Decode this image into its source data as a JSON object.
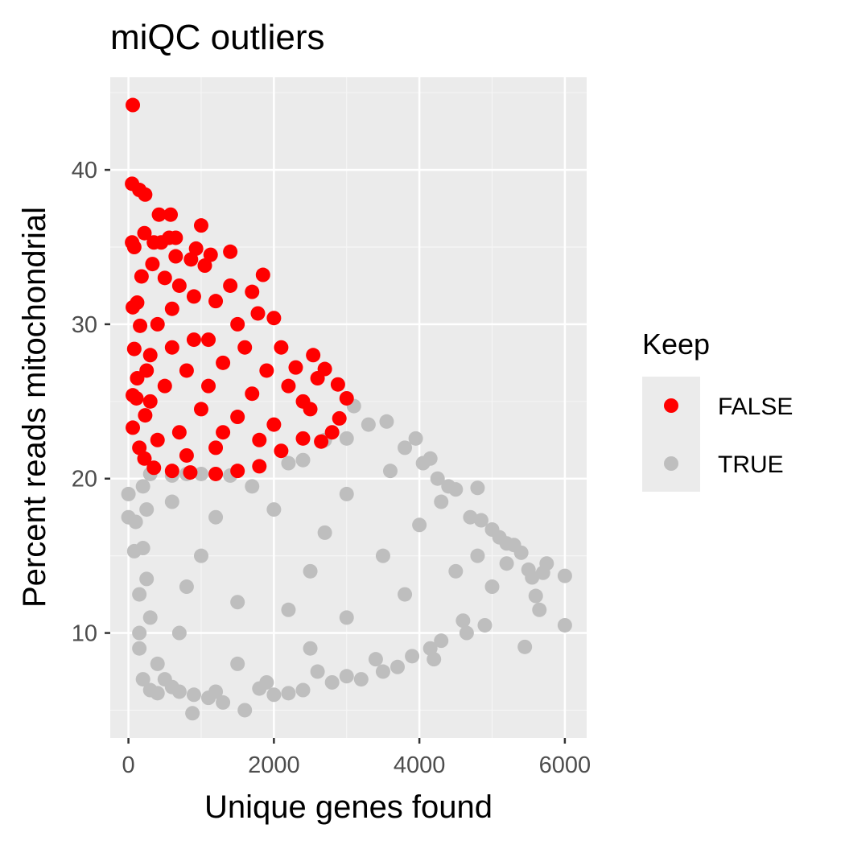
{
  "chart_data": {
    "type": "scatter",
    "title": "miQC outliers",
    "xlabel": "Unique genes found",
    "ylabel": "Percent reads mitochondrial",
    "xlim": [
      -250,
      6300
    ],
    "ylim": [
      3.2,
      46
    ],
    "x_ticks": [
      0,
      2000,
      4000,
      6000
    ],
    "x_tick_labels": [
      "0",
      "2000",
      "4000",
      "6000"
    ],
    "y_ticks": [
      10,
      20,
      30,
      40
    ],
    "y_tick_labels": [
      "10",
      "20",
      "30",
      "40"
    ],
    "grid": true,
    "legend": {
      "title": "Keep",
      "position": "right",
      "entries": [
        {
          "label": "FALSE",
          "color": "#ff0000"
        },
        {
          "label": "TRUE",
          "color": "#bebebe"
        }
      ]
    },
    "series": [
      {
        "name": "TRUE",
        "color": "#bebebe",
        "points": [
          [
            0,
            19.0
          ],
          [
            0,
            17.5
          ],
          [
            80,
            15.3
          ],
          [
            100,
            17.2
          ],
          [
            150,
            12.5
          ],
          [
            150,
            10.0
          ],
          [
            150,
            9.0
          ],
          [
            200,
            7.0
          ],
          [
            200,
            19.5
          ],
          [
            300,
            6.3
          ],
          [
            300,
            20.3
          ],
          [
            400,
            6.1
          ],
          [
            500,
            7.0
          ],
          [
            600,
            20.2
          ],
          [
            700,
            6.2
          ],
          [
            800,
            20.3
          ],
          [
            880,
            4.8
          ],
          [
            900,
            6.0
          ],
          [
            1000,
            20.3
          ],
          [
            1100,
            5.8
          ],
          [
            1300,
            5.5
          ],
          [
            1400,
            20.2
          ],
          [
            1600,
            5.0
          ],
          [
            1800,
            6.4
          ],
          [
            2000,
            6.0
          ],
          [
            2200,
            21.0
          ],
          [
            2200,
            6.1
          ],
          [
            2400,
            21.2
          ],
          [
            2400,
            6.3
          ],
          [
            2700,
            22.5
          ],
          [
            2800,
            6.8
          ],
          [
            3000,
            22.6
          ],
          [
            3000,
            7.2
          ],
          [
            3100,
            24.7
          ],
          [
            3200,
            7.0
          ],
          [
            3300,
            23.5
          ],
          [
            3500,
            7.5
          ],
          [
            3550,
            23.7
          ],
          [
            3700,
            7.8
          ],
          [
            3800,
            22.0
          ],
          [
            3900,
            8.5
          ],
          [
            3950,
            22.6
          ],
          [
            4050,
            21.0
          ],
          [
            4150,
            21.3
          ],
          [
            4200,
            8.3
          ],
          [
            4250,
            20.0
          ],
          [
            4300,
            9.5
          ],
          [
            4400,
            19.5
          ],
          [
            4500,
            19.3
          ],
          [
            4600,
            10.8
          ],
          [
            4700,
            17.5
          ],
          [
            4800,
            19.4
          ],
          [
            4850,
            17.3
          ],
          [
            4900,
            10.5
          ],
          [
            5000,
            16.7
          ],
          [
            5100,
            16.2
          ],
          [
            5200,
            15.8
          ],
          [
            5300,
            15.7
          ],
          [
            5400,
            15.2
          ],
          [
            5450,
            9.1
          ],
          [
            5500,
            14.1
          ],
          [
            5550,
            13.6
          ],
          [
            5600,
            12.4
          ],
          [
            5700,
            13.9
          ],
          [
            5750,
            14.5
          ],
          [
            5650,
            11.5
          ],
          [
            6000,
            13.7
          ],
          [
            6000,
            10.5
          ],
          [
            4650,
            10.0
          ],
          [
            4150,
            9.0
          ],
          [
            3400,
            8.3
          ],
          [
            2600,
            7.5
          ],
          [
            1900,
            6.8
          ],
          [
            1200,
            6.2
          ],
          [
            600,
            6.5
          ],
          [
            400,
            8.0
          ],
          [
            300,
            11.0
          ],
          [
            250,
            13.5
          ],
          [
            200,
            15.5
          ],
          [
            250,
            18.0
          ],
          [
            1500,
            12.0
          ],
          [
            2500,
            14.0
          ],
          [
            3500,
            15.0
          ],
          [
            4500,
            14.0
          ],
          [
            2000,
            18.0
          ],
          [
            1000,
            15.0
          ],
          [
            3000,
            11.0
          ],
          [
            2500,
            9.0
          ],
          [
            1500,
            8.0
          ],
          [
            700,
            10.0
          ],
          [
            4000,
            17.0
          ],
          [
            3000,
            19.0
          ],
          [
            5000,
            13.0
          ],
          [
            1200,
            17.5
          ],
          [
            800,
            13.0
          ],
          [
            2200,
            11.5
          ],
          [
            3800,
            12.5
          ],
          [
            4800,
            15.0
          ],
          [
            1700,
            19.5
          ],
          [
            2700,
            16.5
          ],
          [
            4300,
            18.5
          ],
          [
            5200,
            14.5
          ],
          [
            3600,
            20.5
          ],
          [
            600,
            18.5
          ]
        ]
      },
      {
        "name": "FALSE",
        "color": "#ff0000",
        "points": [
          [
            60,
            44.2
          ],
          [
            50,
            39.1
          ],
          [
            150,
            38.7
          ],
          [
            230,
            38.4
          ],
          [
            420,
            37.1
          ],
          [
            580,
            37.1
          ],
          [
            1000,
            36.4
          ],
          [
            50,
            35.3
          ],
          [
            80,
            35.0
          ],
          [
            220,
            35.9
          ],
          [
            350,
            35.3
          ],
          [
            450,
            35.3
          ],
          [
            560,
            35.6
          ],
          [
            650,
            35.6
          ],
          [
            930,
            34.9
          ],
          [
            1130,
            34.5
          ],
          [
            1400,
            34.7
          ],
          [
            650,
            34.4
          ],
          [
            860,
            34.2
          ],
          [
            180,
            33.1
          ],
          [
            330,
            33.9
          ],
          [
            1050,
            33.8
          ],
          [
            1850,
            33.2
          ],
          [
            1780,
            30.7
          ],
          [
            60,
            31.1
          ],
          [
            120,
            31.4
          ],
          [
            160,
            29.9
          ],
          [
            80,
            28.4
          ],
          [
            120,
            26.5
          ],
          [
            60,
            25.4
          ],
          [
            110,
            25.2
          ],
          [
            60,
            23.3
          ],
          [
            230,
            24.1
          ],
          [
            150,
            22.0
          ],
          [
            220,
            21.3
          ],
          [
            350,
            20.7
          ],
          [
            600,
            20.5
          ],
          [
            850,
            20.4
          ],
          [
            1200,
            20.3
          ],
          [
            1500,
            20.5
          ],
          [
            1800,
            20.8
          ],
          [
            2100,
            21.8
          ],
          [
            2400,
            22.6
          ],
          [
            2650,
            22.4
          ],
          [
            2800,
            23.0
          ],
          [
            2900,
            23.9
          ],
          [
            3000,
            25.2
          ],
          [
            2880,
            26.1
          ],
          [
            2700,
            27.1
          ],
          [
            2540,
            28.0
          ],
          [
            2300,
            27.2
          ],
          [
            2000,
            30.4
          ],
          [
            1700,
            32.1
          ],
          [
            1400,
            32.5
          ],
          [
            1200,
            31.5
          ],
          [
            900,
            31.8
          ],
          [
            600,
            31.0
          ],
          [
            400,
            30.0
          ],
          [
            300,
            28.0
          ],
          [
            500,
            26.0
          ],
          [
            800,
            27.0
          ],
          [
            1100,
            29.0
          ],
          [
            1300,
            27.5
          ],
          [
            1600,
            28.5
          ],
          [
            1900,
            27.0
          ],
          [
            2200,
            26.0
          ],
          [
            2500,
            24.5
          ],
          [
            2000,
            23.5
          ],
          [
            1500,
            24.0
          ],
          [
            1000,
            24.5
          ],
          [
            700,
            23.0
          ],
          [
            400,
            22.5
          ],
          [
            1200,
            22.0
          ],
          [
            1800,
            22.5
          ],
          [
            2400,
            25.0
          ],
          [
            900,
            29.0
          ],
          [
            600,
            28.5
          ],
          [
            1500,
            30.0
          ],
          [
            1100,
            26.0
          ],
          [
            300,
            25.0
          ],
          [
            2100,
            28.5
          ],
          [
            1700,
            25.5
          ],
          [
            800,
            21.5
          ],
          [
            2600,
            26.5
          ],
          [
            1300,
            23.0
          ],
          [
            500,
            33.0
          ],
          [
            700,
            32.5
          ],
          [
            250,
            27.0
          ]
        ]
      }
    ]
  }
}
